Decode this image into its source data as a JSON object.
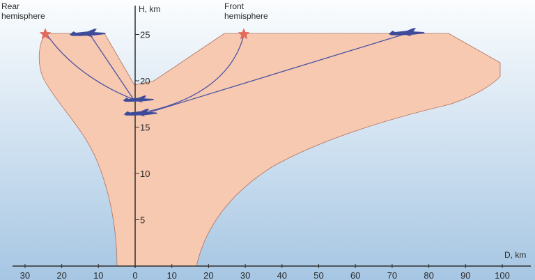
{
  "axes": {
    "h_title": "H, km",
    "d_title": "D, km",
    "h_ticks": [
      {
        "value": 25,
        "label": "25"
      },
      {
        "value": 20,
        "label": "20"
      },
      {
        "value": 15,
        "label": "15"
      },
      {
        "value": 10,
        "label": "10"
      },
      {
        "value": 5,
        "label": "5"
      }
    ],
    "d_rear_ticks": [
      {
        "value": 30,
        "label": "30"
      },
      {
        "value": 20,
        "label": "20"
      },
      {
        "value": 10,
        "label": "10"
      }
    ],
    "d_front_ticks": [
      {
        "value": 0,
        "label": "0"
      },
      {
        "value": 10,
        "label": "10"
      },
      {
        "value": 20,
        "label": "20"
      },
      {
        "value": 30,
        "label": "30"
      },
      {
        "value": 40,
        "label": "40"
      },
      {
        "value": 50,
        "label": "50"
      },
      {
        "value": 60,
        "label": "60"
      },
      {
        "value": 70,
        "label": "70"
      },
      {
        "value": 80,
        "label": "80"
      },
      {
        "value": 90,
        "label": "90"
      },
      {
        "value": 100,
        "label": "100"
      }
    ]
  },
  "hemispheres": {
    "rear": [
      "Rear",
      "hemisphere"
    ],
    "front": [
      "Front",
      "hemisphere"
    ]
  },
  "colors": {
    "zone_fill": "#f7c9b0",
    "zone_stroke": "#b07060",
    "aircraft": "#3e4a9a",
    "star": "#e26a5a",
    "axis": "#2f2f2f",
    "sky_top": "#fbfdfe",
    "sky_bottom": "#a6c6e3"
  }
}
